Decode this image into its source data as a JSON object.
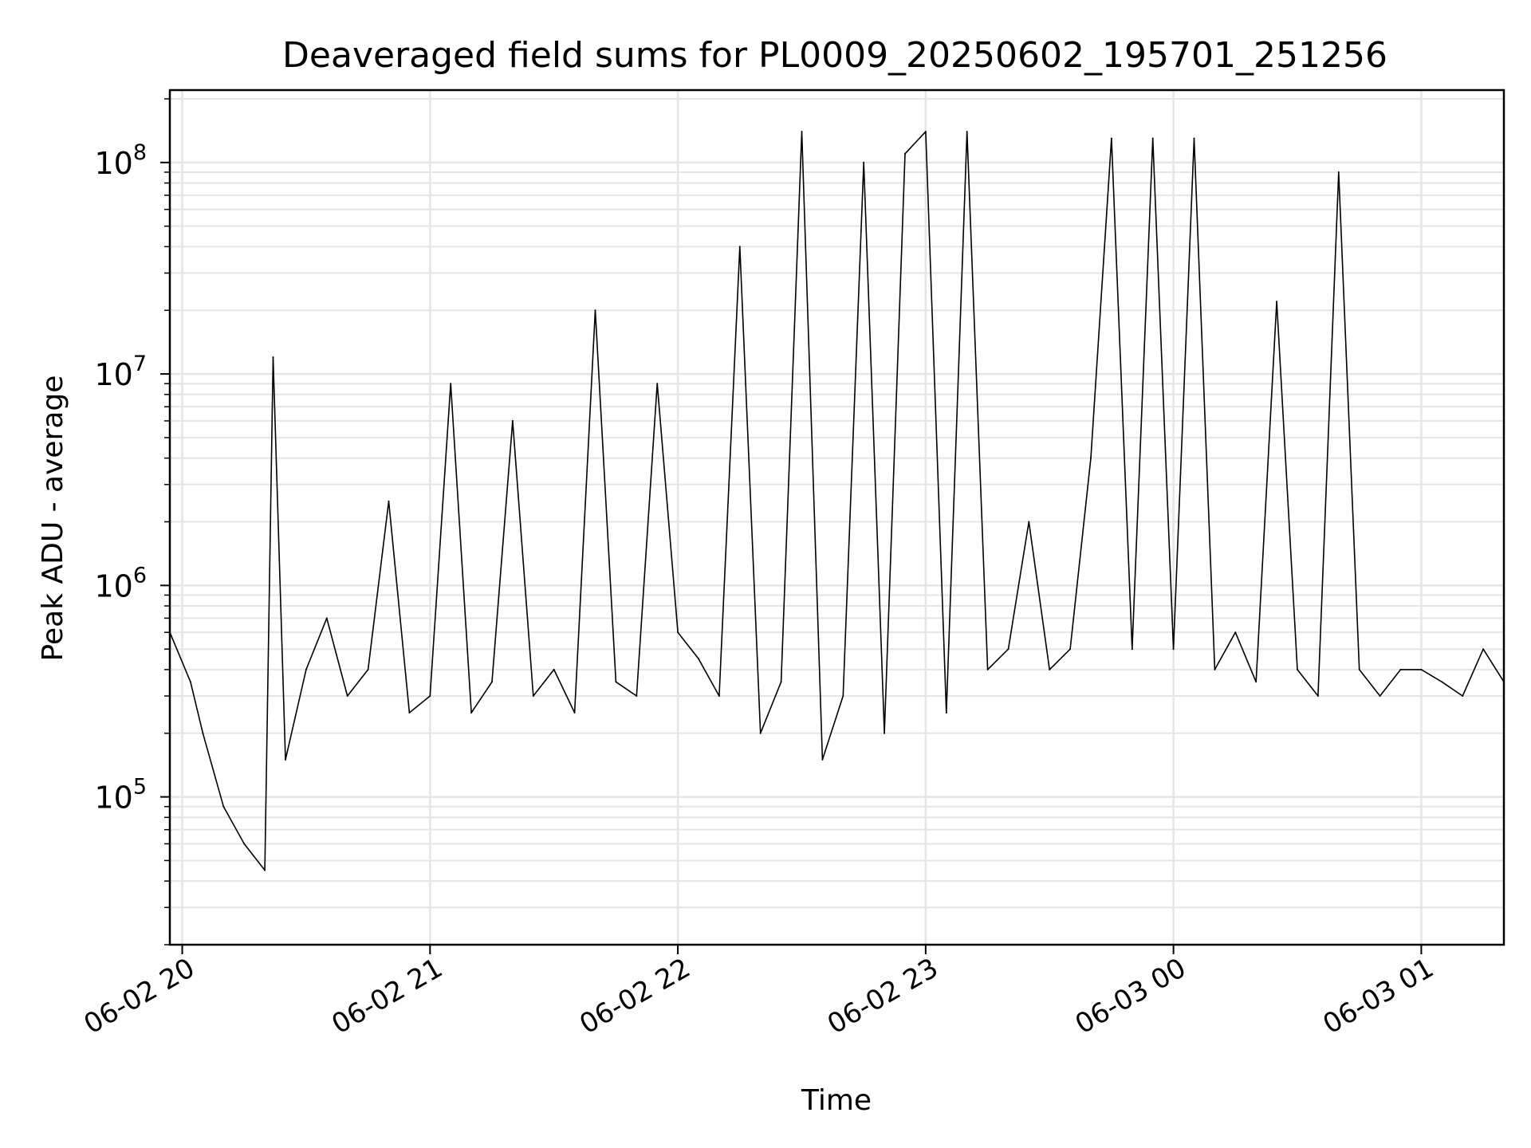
{
  "chart_data": {
    "type": "line",
    "title": "Deaveraged field sums for PL0009_20250602_195701_251256",
    "xlabel": "Time",
    "ylabel": "Peak ADU - average",
    "yscale": "log",
    "grid": true,
    "line_color": "#000000",
    "grid_color": "#e5e5e5",
    "xlim": [
      "2025-06-02 19:57",
      "2025-06-03 01:20"
    ],
    "ylim": [
      20000,
      220000000
    ],
    "x_ticks": [
      {
        "value": "2025-06-02 20:00",
        "label": "06-02 20"
      },
      {
        "value": "2025-06-02 21:00",
        "label": "06-02 21"
      },
      {
        "value": "2025-06-02 22:00",
        "label": "06-02 22"
      },
      {
        "value": "2025-06-02 23:00",
        "label": "06-02 23"
      },
      {
        "value": "2025-06-03 00:00",
        "label": "06-03 00"
      },
      {
        "value": "2025-06-03 01:00",
        "label": "06-03 01"
      }
    ],
    "y_ticks": [
      {
        "value": 100000,
        "base": "10",
        "exp": "5"
      },
      {
        "value": 1000000,
        "base": "10",
        "exp": "6"
      },
      {
        "value": 10000000,
        "base": "10",
        "exp": "7"
      },
      {
        "value": 100000000,
        "base": "10",
        "exp": "8"
      }
    ],
    "series": [
      {
        "x": [
          "2025-06-02 19:57",
          "2025-06-02 20:02",
          "2025-06-02 20:05",
          "2025-06-02 20:10",
          "2025-06-02 20:15",
          "2025-06-02 20:20",
          "2025-06-02 20:22",
          "2025-06-02 20:25",
          "2025-06-02 20:30",
          "2025-06-02 20:35",
          "2025-06-02 20:40",
          "2025-06-02 20:45",
          "2025-06-02 20:50",
          "2025-06-02 20:55",
          "2025-06-02 21:00",
          "2025-06-02 21:05",
          "2025-06-02 21:10",
          "2025-06-02 21:15",
          "2025-06-02 21:20",
          "2025-06-02 21:25",
          "2025-06-02 21:30",
          "2025-06-02 21:35",
          "2025-06-02 21:40",
          "2025-06-02 21:45",
          "2025-06-02 21:50",
          "2025-06-02 21:55",
          "2025-06-02 22:00",
          "2025-06-02 22:05",
          "2025-06-02 22:10",
          "2025-06-02 22:15",
          "2025-06-02 22:20",
          "2025-06-02 22:25",
          "2025-06-02 22:30",
          "2025-06-02 22:35",
          "2025-06-02 22:40",
          "2025-06-02 22:45",
          "2025-06-02 22:50",
          "2025-06-02 22:55",
          "2025-06-02 23:00",
          "2025-06-02 23:05",
          "2025-06-02 23:10",
          "2025-06-02 23:15",
          "2025-06-02 23:20",
          "2025-06-02 23:25",
          "2025-06-02 23:30",
          "2025-06-02 23:35",
          "2025-06-02 23:40",
          "2025-06-02 23:45",
          "2025-06-02 23:50",
          "2025-06-02 23:55",
          "2025-06-03 00:00",
          "2025-06-03 00:05",
          "2025-06-03 00:10",
          "2025-06-03 00:15",
          "2025-06-03 00:20",
          "2025-06-03 00:25",
          "2025-06-03 00:30",
          "2025-06-03 00:35",
          "2025-06-03 00:40",
          "2025-06-03 00:45",
          "2025-06-03 00:50",
          "2025-06-03 00:55",
          "2025-06-03 01:00",
          "2025-06-03 01:05",
          "2025-06-03 01:10",
          "2025-06-03 01:15",
          "2025-06-03 01:20"
        ],
        "y": [
          600000,
          350000,
          200000,
          90000,
          60000,
          45000,
          12000000,
          150000,
          400000,
          700000,
          300000,
          400000,
          2500000,
          250000,
          300000,
          9000000,
          250000,
          350000,
          6000000,
          300000,
          400000,
          250000,
          20000000,
          350000,
          300000,
          9000000,
          600000,
          450000,
          300000,
          40000000,
          200000,
          350000,
          140000000,
          150000,
          300000,
          100000000,
          200000,
          110000000,
          140000000,
          250000,
          140000000,
          400000,
          500000,
          2000000,
          400000,
          500000,
          4000000,
          130000000,
          500000,
          130000000,
          500000,
          130000000,
          400000,
          600000,
          350000,
          22000000,
          400000,
          300000,
          90000000,
          400000,
          300000,
          400000,
          400000,
          350000,
          300000,
          500000,
          350000
        ]
      }
    ]
  }
}
